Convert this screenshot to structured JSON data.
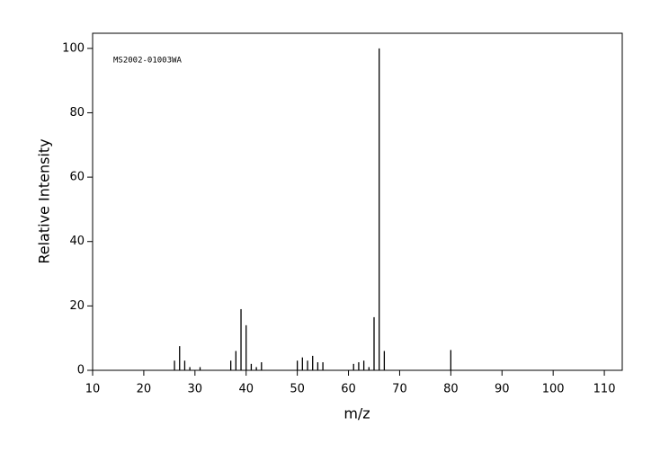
{
  "chart_data": {
    "type": "stem",
    "annotation": "MS2002-01003WA",
    "x_label": "m/z",
    "y_label": "Relative Intensity",
    "x": [
      26,
      27,
      28,
      29,
      31,
      37,
      38,
      39,
      40,
      41,
      42,
      43,
      50,
      51,
      52,
      53,
      54,
      55,
      61,
      62,
      63,
      64,
      65,
      66,
      67,
      80
    ],
    "values": [
      3,
      7.5,
      3,
      1,
      1,
      3,
      6,
      19,
      14,
      2,
      1,
      2.5,
      3,
      4,
      3,
      4.5,
      2.5,
      2.5,
      2,
      2.5,
      3,
      1,
      16.5,
      100,
      6,
      6.3
    ],
    "color": "#000000",
    "xlim": [
      10,
      113.5
    ],
    "ylim": [
      0,
      104.7
    ],
    "xticks": [
      10,
      20,
      30,
      40,
      50,
      60,
      70,
      80,
      90,
      100,
      110
    ],
    "yticks": [
      0,
      20,
      40,
      60,
      80,
      100
    ]
  }
}
